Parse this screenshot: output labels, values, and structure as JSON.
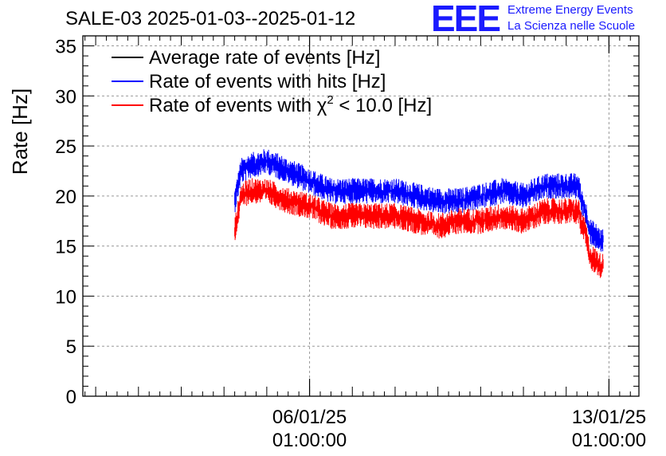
{
  "header": {
    "title": "SALE-03 2025-01-03--2025-01-12",
    "logo_text": "EEE",
    "logo_line1": "Extreme Energy Events",
    "logo_line2": "La Scienza nelle Scuole"
  },
  "colors": {
    "average": "#000000",
    "hits": "#0000ff",
    "chi2": "#ff0000",
    "logo": "#1a1aff",
    "grid": "#999999"
  },
  "chart_data": {
    "type": "line",
    "title": "SALE-03 2025-01-03--2025-01-12",
    "ylabel": "Rate [Hz]",
    "xlabel": "",
    "ylim": [
      0,
      36
    ],
    "yticks": [
      0,
      5,
      10,
      15,
      20,
      25,
      30,
      35
    ],
    "grid": true,
    "legend_position": "top-left",
    "x_tick_labels": [
      {
        "date": "06/01/25",
        "time": "01:00:00",
        "day": 3.0
      },
      {
        "date": "13/01/25",
        "time": "01:00:00",
        "day": 10.0
      }
    ],
    "xlim_days_from_2025-01-03T01:00": [
      -2.3,
      10.7
    ],
    "series": [
      {
        "name": "Average rate of events [Hz]",
        "color": "#000000",
        "x": [],
        "values": []
      },
      {
        "name": "Rate of events with hits [Hz]",
        "color": "#0000ff",
        "x": [
          1.25,
          1.4,
          1.6,
          2.0,
          2.5,
          3.0,
          3.5,
          4.0,
          4.5,
          5.0,
          5.5,
          6.0,
          6.5,
          7.0,
          7.5,
          8.0,
          8.5,
          9.0,
          9.3,
          9.35,
          9.45,
          9.55,
          9.7,
          9.8,
          9.87
        ],
        "values": [
          19.5,
          22.5,
          23.0,
          23.5,
          22.5,
          21.5,
          20.5,
          20.5,
          20.5,
          20.5,
          20.0,
          19.5,
          19.5,
          20.0,
          20.5,
          20.0,
          21.0,
          21.0,
          21.0,
          19.5,
          18.5,
          16.5,
          16.0,
          15.5,
          15.5
        ]
      },
      {
        "name": "Rate of events with χ² < 10.0 [Hz]",
        "color": "#ff0000",
        "x": [
          1.25,
          1.4,
          1.6,
          2.0,
          2.5,
          3.0,
          3.5,
          4.0,
          4.5,
          5.0,
          5.5,
          6.0,
          6.5,
          7.0,
          7.5,
          8.0,
          8.5,
          9.0,
          9.3,
          9.35,
          9.45,
          9.55,
          9.7,
          9.8,
          9.87
        ],
        "values": [
          16.5,
          20.0,
          20.5,
          20.5,
          19.5,
          19.0,
          18.0,
          18.0,
          18.0,
          18.0,
          17.5,
          17.0,
          17.5,
          17.5,
          18.0,
          17.5,
          18.5,
          18.5,
          18.5,
          17.0,
          16.5,
          14.0,
          13.5,
          13.0,
          13.0
        ]
      }
    ],
    "legend": [
      {
        "label": "Average rate of events [Hz]",
        "color": "#000000"
      },
      {
        "label": "Rate of events with hits [Hz]",
        "color": "#0000ff"
      },
      {
        "label_main": "Rate of events with ",
        "label_chi": "χ",
        "label_sup": "2",
        "label_tail": " < 10.0 [Hz]",
        "color": "#ff0000"
      }
    ]
  }
}
